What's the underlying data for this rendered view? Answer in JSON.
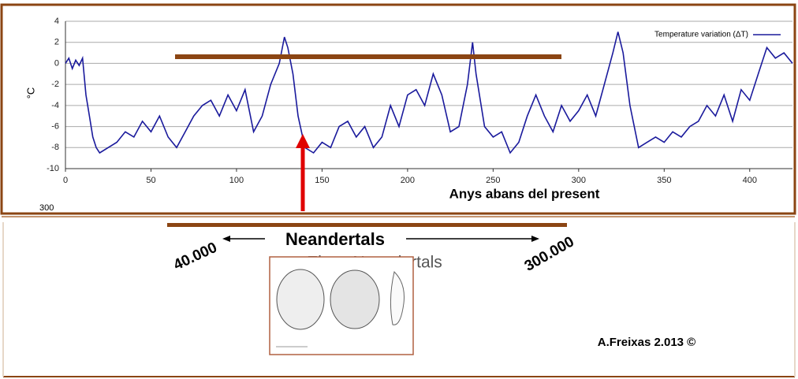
{
  "chart_data": {
    "type": "line",
    "x": [
      0,
      2,
      4,
      6,
      8,
      10,
      12,
      14,
      16,
      18,
      20,
      25,
      30,
      35,
      40,
      45,
      50,
      55,
      60,
      65,
      70,
      75,
      80,
      85,
      90,
      95,
      100,
      105,
      110,
      115,
      120,
      125,
      128,
      130,
      133,
      136,
      140,
      145,
      150,
      155,
      160,
      165,
      170,
      175,
      180,
      185,
      190,
      195,
      200,
      205,
      210,
      215,
      220,
      225,
      230,
      235,
      238,
      240,
      245,
      250,
      255,
      260,
      265,
      270,
      275,
      280,
      285,
      290,
      295,
      300,
      305,
      310,
      315,
      320,
      323,
      326,
      330,
      335,
      340,
      345,
      350,
      355,
      360,
      365,
      370,
      375,
      380,
      385,
      390,
      395,
      400,
      405,
      410,
      415,
      420,
      425
    ],
    "series": [
      {
        "name": "Temperature variation (ΔT)",
        "color": "#1a1a9c",
        "values": [
          0,
          0.5,
          -0.5,
          0.3,
          -0.2,
          0.5,
          -3,
          -5,
          -7,
          -8,
          -8.5,
          -8,
          -7.5,
          -6.5,
          -7,
          -5.5,
          -6.5,
          -5,
          -7,
          -8,
          -6.5,
          -5,
          -4,
          -3.5,
          -5,
          -3,
          -4.5,
          -2.5,
          -6.5,
          -5,
          -2,
          0,
          2.5,
          1.5,
          -1,
          -5,
          -8,
          -8.5,
          -7.5,
          -8,
          -6,
          -5.5,
          -7,
          -6,
          -8,
          -7,
          -4,
          -6,
          -3,
          -2.5,
          -4,
          -1,
          -3,
          -6.5,
          -6,
          -2,
          2,
          -1,
          -6,
          -7,
          -6.5,
          -8.5,
          -7.5,
          -5,
          -3,
          -5,
          -6.5,
          -4,
          -5.5,
          -4.5,
          -3,
          -5,
          -2,
          1,
          3,
          1,
          -4,
          -8,
          -7.5,
          -7,
          -7.5,
          -6.5,
          -7,
          -6,
          -5.5,
          -4,
          -5,
          -3,
          -5.5,
          -2.5,
          -3.5,
          -1,
          1.5,
          0.5,
          1,
          0
        ]
      }
    ],
    "xlim": [
      0,
      425
    ],
    "ylim": [
      -10,
      4
    ],
    "xticks": [
      0,
      50,
      100,
      150,
      200,
      250,
      300,
      350,
      400
    ],
    "yticks": [
      -10,
      -8,
      -6,
      -4,
      -2,
      0,
      2,
      4
    ],
    "grid": true,
    "y_label": "°C",
    "x_label": "Anys abans del present",
    "legend": "top-right",
    "cut_label": "300",
    "period_label": "Neandertals",
    "period_start": "40.000",
    "period_end": "300.000",
    "hidden_caption": "Eines Neandertals",
    "credit": "A.Freixas 2.013 ©"
  }
}
